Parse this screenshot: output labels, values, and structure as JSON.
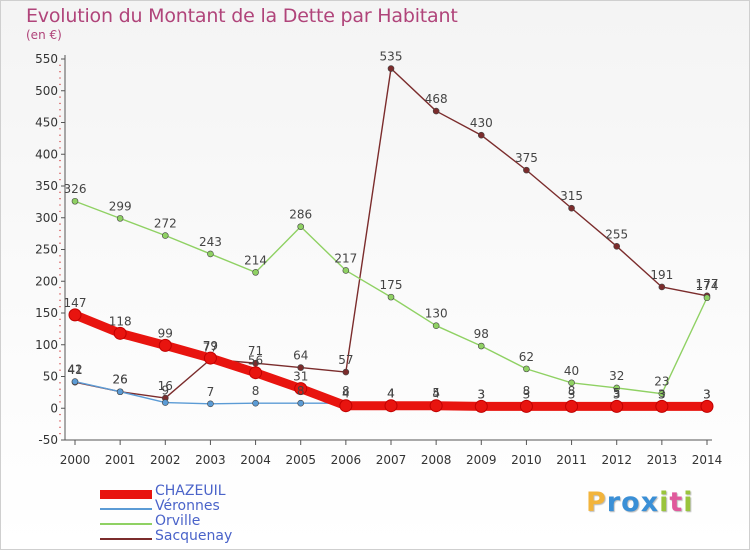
{
  "header": {
    "title": "Evolution du Montant de la Dette par Habitant",
    "subtitle": "(en €)"
  },
  "brand": {
    "letters": [
      "P",
      "r",
      "o",
      "x",
      "i",
      "t",
      "i"
    ],
    "colors": [
      "#f2b43c",
      "#3a8fd6",
      "#3a8fd6",
      "#3a8fd6",
      "#9ac43c",
      "#e05a9c",
      "#9ac43c"
    ]
  },
  "chart_data": {
    "type": "line",
    "title": "Evolution du Montant de la Dette par Habitant",
    "ylabel": "(en €)",
    "xlabel": "",
    "x": [
      "2000",
      "2001",
      "2002",
      "2003",
      "2004",
      "2005",
      "2006",
      "2007",
      "2008",
      "2009",
      "2010",
      "2011",
      "2012",
      "2013",
      "2014"
    ],
    "yticks": [
      "-50",
      "0",
      "50",
      "100",
      "150",
      "200",
      "250",
      "300",
      "350",
      "400",
      "450",
      "500",
      "550"
    ],
    "ylim": [
      -50,
      550
    ],
    "grid": "y-minor-ticks",
    "legend_position": "bottom-left",
    "series": [
      {
        "name": "CHAZEUIL",
        "color": "#e8140f",
        "values": [
          147,
          118,
          99,
          79,
          56,
          31,
          4,
          4,
          4,
          3,
          3,
          3,
          3,
          3,
          3
        ],
        "labels": [
          "147",
          "118",
          "99",
          "79",
          "56",
          "31",
          "4",
          "4",
          "4",
          "3",
          "3",
          "3",
          "3",
          "3",
          "3"
        ]
      },
      {
        "name": "Véronnes",
        "color": "#5b9bd5",
        "values": [
          42,
          26,
          9,
          7,
          8,
          8,
          8,
          4,
          5,
          3,
          8,
          8,
          5,
          3,
          3
        ],
        "labels": [
          "42",
          "26",
          "9",
          "7",
          "8",
          "8",
          "8",
          "4",
          "5",
          "3",
          "8",
          "8",
          "5",
          "3",
          "3"
        ]
      },
      {
        "name": "Orville",
        "color": "#8fd163",
        "values": [
          326,
          299,
          272,
          243,
          214,
          286,
          217,
          175,
          130,
          98,
          62,
          40,
          32,
          23,
          174
        ],
        "labels": [
          "326",
          "299",
          "272",
          "243",
          "214",
          "286",
          "217",
          "175",
          "130",
          "98",
          "62",
          "40",
          "32",
          "23",
          "174"
        ]
      },
      {
        "name": "Sacquenay",
        "color": "#7b2c2c",
        "values": [
          41,
          26,
          16,
          77,
          71,
          64,
          57,
          535,
          468,
          430,
          375,
          315,
          255,
          191,
          177
        ],
        "labels": [
          "41",
          "26",
          "16",
          "77",
          "71",
          "64",
          "57",
          "535",
          "468",
          "430",
          "375",
          "315",
          "255",
          "191",
          "177"
        ]
      }
    ]
  }
}
